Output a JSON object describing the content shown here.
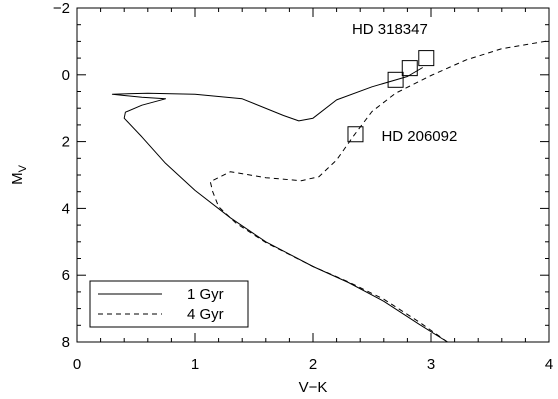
{
  "chart_data": {
    "type": "line",
    "xlabel": "V−K",
    "ylabel": "M",
    "ylabel_sub": "V",
    "xlim": [
      0,
      4
    ],
    "ylim": [
      8,
      -2
    ],
    "y_inverted": true,
    "x_ticks": [
      "0",
      "1",
      "2",
      "3",
      "4"
    ],
    "x_tick_values": [
      0,
      1,
      2,
      3,
      4
    ],
    "y_ticks": [
      "−2",
      "0",
      "2",
      "4",
      "6",
      "8"
    ],
    "y_tick_values": [
      -2,
      0,
      2,
      4,
      6,
      8
    ],
    "grid": false,
    "legend_position": "bottom-left",
    "series": [
      {
        "name": "1 Gyr",
        "style": "solid",
        "points": [
          [
            3.14,
            8.0
          ],
          [
            2.9,
            7.47
          ],
          [
            2.6,
            6.78
          ],
          [
            2.3,
            6.22
          ],
          [
            2.0,
            5.74
          ],
          [
            1.6,
            5.0
          ],
          [
            1.3,
            4.28
          ],
          [
            1.0,
            3.46
          ],
          [
            0.75,
            2.65
          ],
          [
            0.55,
            1.86
          ],
          [
            0.4,
            1.3
          ],
          [
            0.41,
            1.12
          ],
          [
            0.55,
            0.91
          ],
          [
            0.75,
            0.72
          ],
          [
            0.55,
            0.67
          ],
          [
            0.4,
            0.62
          ],
          [
            0.3,
            0.58
          ],
          [
            0.6,
            0.55
          ],
          [
            1.0,
            0.58
          ],
          [
            1.4,
            0.72
          ],
          [
            1.75,
            1.22
          ],
          [
            1.88,
            1.38
          ],
          [
            2.0,
            1.3
          ],
          [
            2.2,
            0.75
          ],
          [
            2.5,
            0.36
          ],
          [
            2.8,
            0.05
          ],
          [
            2.93,
            -0.22
          ]
        ]
      },
      {
        "name": "4 Gyr",
        "style": "dashed",
        "points": [
          [
            3.14,
            8.0
          ],
          [
            2.9,
            7.4
          ],
          [
            2.6,
            6.72
          ],
          [
            2.3,
            6.2
          ],
          [
            2.0,
            5.74
          ],
          [
            1.6,
            5.02
          ],
          [
            1.35,
            4.45
          ],
          [
            1.2,
            3.95
          ],
          [
            1.15,
            3.5
          ],
          [
            1.13,
            3.2
          ],
          [
            1.3,
            2.9
          ],
          [
            1.6,
            3.08
          ],
          [
            1.9,
            3.17
          ],
          [
            2.05,
            3.05
          ],
          [
            2.2,
            2.55
          ],
          [
            2.35,
            1.8
          ],
          [
            2.5,
            1.1
          ],
          [
            2.7,
            0.55
          ],
          [
            3.0,
            0.02
          ],
          [
            3.3,
            -0.45
          ],
          [
            3.6,
            -0.78
          ],
          [
            4.0,
            -1.02
          ]
        ]
      }
    ],
    "markers": [
      {
        "x": 2.7,
        "y": 0.15
      },
      {
        "x": 2.82,
        "y": -0.2
      },
      {
        "x": 2.96,
        "y": -0.5
      },
      {
        "x": 2.36,
        "y": 1.78
      }
    ],
    "annotations": [
      {
        "text": "HD 318347",
        "x": 2.33,
        "y": -1.22
      },
      {
        "text": "HD 206092",
        "x": 2.58,
        "y": 1.98
      }
    ]
  }
}
